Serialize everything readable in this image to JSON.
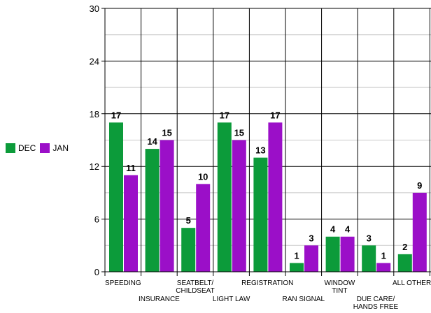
{
  "chart_data": {
    "type": "bar",
    "categories": [
      "SPEEDING",
      "INSURANCE",
      "SEATBELT/\nCHILDSEAT",
      "LIGHT LAW",
      "REGISTRATION",
      "RAN SIGNAL",
      "WINDOW\nTINT",
      "DUE CARE/\nHANDS FREE",
      "ALL OTHER"
    ],
    "series": [
      {
        "name": "DEC",
        "color": "#0c9b3a",
        "values": [
          17,
          14,
          5,
          17,
          13,
          1,
          4,
          3,
          2
        ]
      },
      {
        "name": "JAN",
        "color": "#9b0fc8",
        "values": [
          11,
          15,
          10,
          15,
          17,
          3,
          4,
          1,
          9
        ]
      }
    ],
    "ylim": [
      0,
      30
    ],
    "yticks": [
      0,
      6,
      12,
      18,
      24,
      30
    ],
    "title": "",
    "xlabel": "",
    "ylabel": "",
    "grid": true,
    "legend_position": "left"
  }
}
